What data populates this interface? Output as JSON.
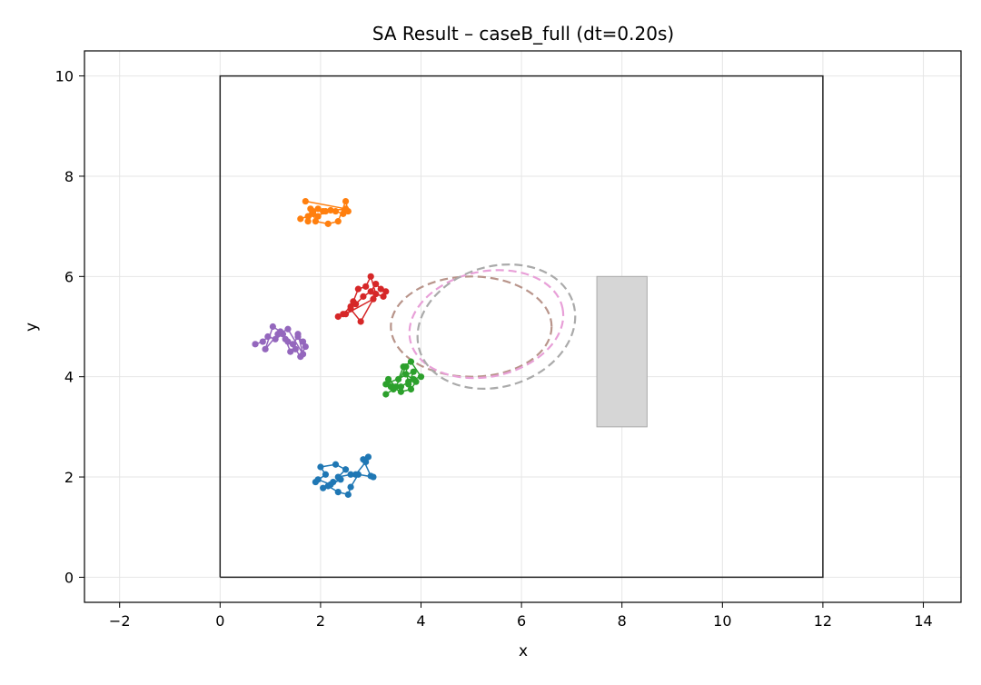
{
  "chart_data": {
    "type": "scatter",
    "title": "SA Result – caseB_full (dt=0.20s)",
    "xlabel": "x",
    "ylabel": "y",
    "xlim": [
      -2.7,
      14.75
    ],
    "ylim": [
      -0.5,
      10.5
    ],
    "xticks": [
      -2,
      0,
      2,
      4,
      6,
      8,
      10,
      12,
      14
    ],
    "yticks": [
      0,
      2,
      4,
      6,
      8,
      10
    ],
    "xtick_labels": [
      "−2",
      "0",
      "2",
      "4",
      "6",
      "8",
      "10",
      "12",
      "14"
    ],
    "ytick_labels": [
      "0",
      "2",
      "4",
      "6",
      "8",
      "10"
    ],
    "grid": true,
    "boundary": {
      "x": [
        0,
        12,
        12,
        0,
        0
      ],
      "y": [
        0,
        0,
        10,
        10,
        0
      ],
      "color": "#222222"
    },
    "obstacle": {
      "x0": 7.5,
      "x1": 8.5,
      "y0": 3.0,
      "y1": 6.0,
      "color": "#d6d6d6",
      "edge": "#aaaaaa"
    },
    "ellipses": [
      {
        "cx": 5.0,
        "cy": 5.0,
        "rx": 1.6,
        "ry": 1.0,
        "rot": 0,
        "color": "#b8948a"
      },
      {
        "cx": 5.3,
        "cy": 5.05,
        "rx": 1.55,
        "ry": 1.05,
        "rot": 12,
        "color": "#e8a0d8"
      },
      {
        "cx": 5.5,
        "cy": 5.0,
        "rx": 1.6,
        "ry": 1.2,
        "rot": 17,
        "color": "#aaaaaa"
      }
    ],
    "series": [
      {
        "color": "#1f77b4",
        "x": [
          1.9,
          2.1,
          2.0,
          2.3,
          2.5,
          2.35,
          2.6,
          2.7,
          2.9,
          2.95,
          2.85,
          3.0,
          3.05,
          2.75,
          2.6,
          2.55,
          2.35,
          2.15,
          2.05,
          2.25,
          2.4,
          2.2,
          1.95
        ],
        "y": [
          1.9,
          2.05,
          2.2,
          2.25,
          2.15,
          2.0,
          2.05,
          2.05,
          2.3,
          2.4,
          2.35,
          2.02,
          2.0,
          2.05,
          1.8,
          1.65,
          1.7,
          1.82,
          1.78,
          1.9,
          1.95,
          1.85,
          1.95
        ]
      },
      {
        "color": "#ff7f0e",
        "x": [
          1.6,
          1.75,
          1.85,
          1.95,
          2.05,
          2.2,
          2.3,
          2.45,
          2.55,
          2.5,
          2.35,
          2.15,
          1.9,
          1.85,
          1.75,
          1.8,
          1.95,
          2.1,
          2.5,
          1.7
        ],
        "y": [
          7.15,
          7.2,
          7.3,
          7.35,
          7.3,
          7.32,
          7.3,
          7.25,
          7.3,
          7.5,
          7.1,
          7.05,
          7.1,
          7.25,
          7.1,
          7.35,
          7.2,
          7.3,
          7.35,
          7.5
        ],
        "tail": true
      },
      {
        "color": "#2ca02c",
        "x": [
          3.3,
          3.45,
          3.6,
          3.75,
          3.85,
          4.0,
          3.8,
          3.65,
          3.55,
          3.7,
          3.9,
          3.8,
          3.6,
          3.4,
          3.35,
          3.5,
          3.7,
          3.75,
          3.85,
          3.3
        ],
        "y": [
          3.65,
          3.75,
          3.8,
          3.9,
          3.95,
          4.0,
          4.3,
          4.2,
          3.95,
          4.05,
          3.9,
          3.75,
          3.7,
          3.8,
          3.95,
          3.8,
          4.2,
          3.85,
          4.1,
          3.85
        ]
      },
      {
        "color": "#d62728",
        "x": [
          2.35,
          2.45,
          2.6,
          2.7,
          2.85,
          3.0,
          3.1,
          3.2,
          3.3,
          3.25,
          3.1,
          3.0,
          2.9,
          2.75,
          2.65,
          2.6,
          2.8,
          3.05,
          2.5
        ],
        "y": [
          5.2,
          5.25,
          5.4,
          5.45,
          5.6,
          5.7,
          5.85,
          5.75,
          5.7,
          5.6,
          5.65,
          6.0,
          5.8,
          5.75,
          5.5,
          5.35,
          5.1,
          5.55,
          5.25
        ]
      },
      {
        "color": "#9467bd",
        "x": [
          0.7,
          0.85,
          0.95,
          1.1,
          1.25,
          1.35,
          1.45,
          1.55,
          1.65,
          1.7,
          1.6,
          1.5,
          1.4,
          1.3,
          1.2,
          1.05,
          0.9,
          1.15,
          1.35,
          1.65,
          1.55
        ],
        "y": [
          4.65,
          4.7,
          4.8,
          4.75,
          4.85,
          4.7,
          4.65,
          4.8,
          4.7,
          4.6,
          4.4,
          4.55,
          4.5,
          4.75,
          4.9,
          5.0,
          4.55,
          4.85,
          4.95,
          4.45,
          4.85
        ]
      }
    ]
  }
}
